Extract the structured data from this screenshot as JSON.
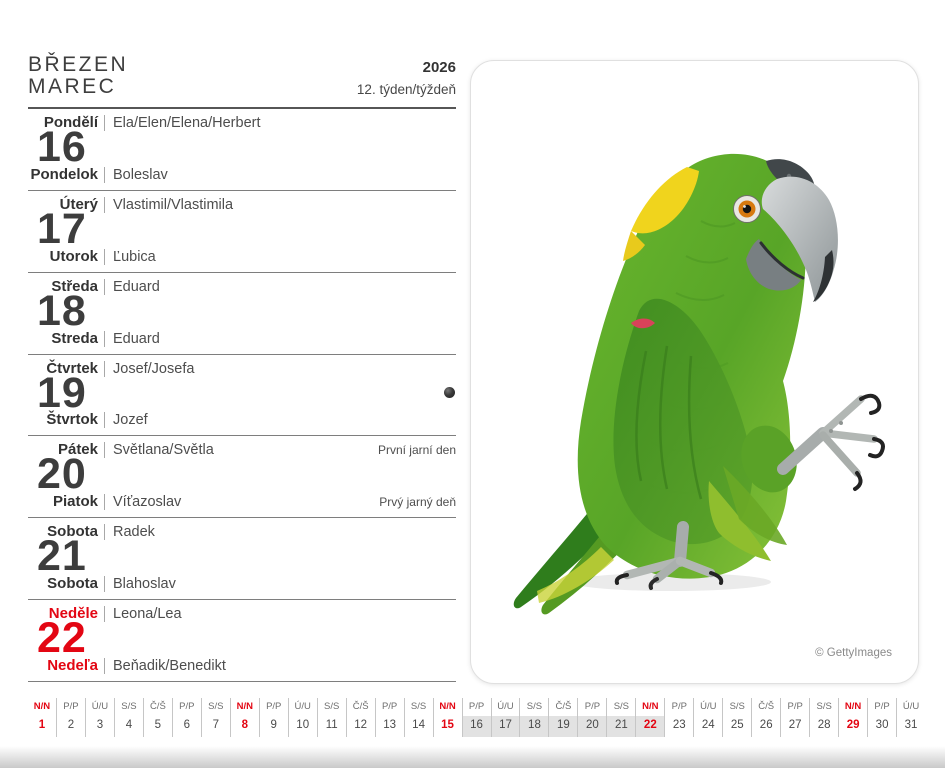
{
  "header": {
    "title_czech": "BŘEZEN",
    "title_slovak": "MAREC",
    "year": "2026",
    "week_label": "12. týden/týždeň"
  },
  "days": [
    {
      "cs_day": "Pondělí",
      "cs_names": "Ela/Elen/Elena/Herbert",
      "num": "16",
      "sk_day": "Pondelok",
      "sk_names": "Boleslav",
      "cs_note": "",
      "sk_note": ""
    },
    {
      "cs_day": "Úterý",
      "cs_names": "Vlastimil/Vlastimila",
      "num": "17",
      "sk_day": "Utorok",
      "sk_names": "Ľubica",
      "cs_note": "",
      "sk_note": ""
    },
    {
      "cs_day": "Středa",
      "cs_names": "Eduard",
      "num": "18",
      "sk_day": "Streda",
      "sk_names": "Eduard",
      "cs_note": "",
      "sk_note": ""
    },
    {
      "cs_day": "Čtvrtek",
      "cs_names": "Josef/Josefa",
      "num": "19",
      "sk_day": "Štvrtok",
      "sk_names": "Jozef",
      "cs_note": "",
      "sk_note": "",
      "moon_icon": "new-moon"
    },
    {
      "cs_day": "Pátek",
      "cs_names": "Světlana/Světla",
      "num": "20",
      "sk_day": "Piatok",
      "sk_names": "Víťazoslav",
      "cs_note": "První jarní den",
      "sk_note": "Prvý jarný deň"
    },
    {
      "cs_day": "Sobota",
      "cs_names": "Radek",
      "num": "21",
      "sk_day": "Sobota",
      "sk_names": "Blahoslav",
      "cs_note": "",
      "sk_note": ""
    },
    {
      "cs_day": "Neděle",
      "cs_names": "Leona/Lea",
      "num": "22",
      "sk_day": "Nedeľa",
      "sk_names": "Beňadik/Benedikt",
      "cs_note": "",
      "sk_note": "",
      "sunday": true
    }
  ],
  "photo": {
    "credit": "© GettyImages",
    "image": "yellow-naped-green-parrot"
  },
  "mini_calendar": {
    "highlight_week": {
      "from": 16,
      "to": 22
    },
    "days": [
      {
        "abbr": "N/N",
        "num": "1",
        "sunday": true,
        "in_week": false
      },
      {
        "abbr": "P/P",
        "num": "2",
        "sunday": false,
        "in_week": false
      },
      {
        "abbr": "Ú/U",
        "num": "3",
        "sunday": false,
        "in_week": false
      },
      {
        "abbr": "S/S",
        "num": "4",
        "sunday": false,
        "in_week": false
      },
      {
        "abbr": "Č/Š",
        "num": "5",
        "sunday": false,
        "in_week": false
      },
      {
        "abbr": "P/P",
        "num": "6",
        "sunday": false,
        "in_week": false
      },
      {
        "abbr": "S/S",
        "num": "7",
        "sunday": false,
        "in_week": false
      },
      {
        "abbr": "N/N",
        "num": "8",
        "sunday": true,
        "in_week": false
      },
      {
        "abbr": "P/P",
        "num": "9",
        "sunday": false,
        "in_week": false
      },
      {
        "abbr": "Ú/U",
        "num": "10",
        "sunday": false,
        "in_week": false
      },
      {
        "abbr": "S/S",
        "num": "11",
        "sunday": false,
        "in_week": false
      },
      {
        "abbr": "Č/Š",
        "num": "12",
        "sunday": false,
        "in_week": false
      },
      {
        "abbr": "P/P",
        "num": "13",
        "sunday": false,
        "in_week": false
      },
      {
        "abbr": "S/S",
        "num": "14",
        "sunday": false,
        "in_week": false
      },
      {
        "abbr": "N/N",
        "num": "15",
        "sunday": true,
        "in_week": false
      },
      {
        "abbr": "P/P",
        "num": "16",
        "sunday": false,
        "in_week": true
      },
      {
        "abbr": "Ú/U",
        "num": "17",
        "sunday": false,
        "in_week": true
      },
      {
        "abbr": "S/S",
        "num": "18",
        "sunday": false,
        "in_week": true
      },
      {
        "abbr": "Č/Š",
        "num": "19",
        "sunday": false,
        "in_week": true
      },
      {
        "abbr": "P/P",
        "num": "20",
        "sunday": false,
        "in_week": true
      },
      {
        "abbr": "S/S",
        "num": "21",
        "sunday": false,
        "in_week": true
      },
      {
        "abbr": "N/N",
        "num": "22",
        "sunday": true,
        "in_week": true
      },
      {
        "abbr": "P/P",
        "num": "23",
        "sunday": false,
        "in_week": false
      },
      {
        "abbr": "Ú/U",
        "num": "24",
        "sunday": false,
        "in_week": false
      },
      {
        "abbr": "S/S",
        "num": "25",
        "sunday": false,
        "in_week": false
      },
      {
        "abbr": "Č/Š",
        "num": "26",
        "sunday": false,
        "in_week": false
      },
      {
        "abbr": "P/P",
        "num": "27",
        "sunday": false,
        "in_week": false
      },
      {
        "abbr": "S/S",
        "num": "28",
        "sunday": false,
        "in_week": false
      },
      {
        "abbr": "N/N",
        "num": "29",
        "sunday": true,
        "in_week": false
      },
      {
        "abbr": "P/P",
        "num": "30",
        "sunday": false,
        "in_week": false
      },
      {
        "abbr": "Ú/U",
        "num": "31",
        "sunday": false,
        "in_week": false
      }
    ]
  },
  "colors": {
    "sunday_red": "#e30613",
    "week_highlight": "#e2e2e2",
    "rule_dark": "#565656",
    "rule_light": "#7e7e7e"
  }
}
